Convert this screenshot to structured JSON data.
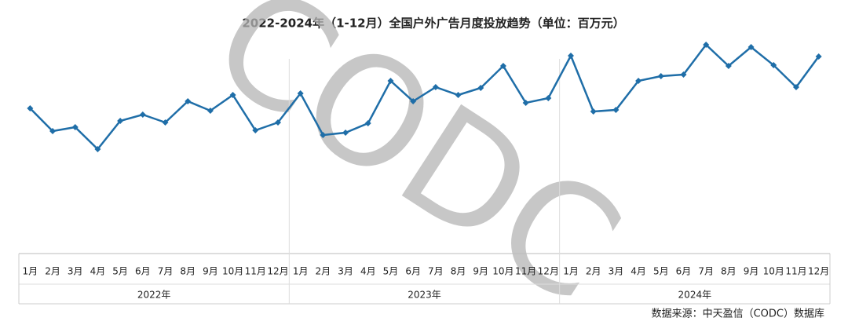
{
  "chart_data": {
    "type": "line",
    "title": "2022-2024年（1-12月）全国户外广告月度投放趋势（单位：百万元）",
    "categories": [
      "1月",
      "2月",
      "3月",
      "4月",
      "5月",
      "6月",
      "7月",
      "8月",
      "9月",
      "10月",
      "11月",
      "12月",
      "1月",
      "2月",
      "3月",
      "4月",
      "5月",
      "6月",
      "7月",
      "8月",
      "9月",
      "10月",
      "11月",
      "12月",
      "1月",
      "2月",
      "3月",
      "4月",
      "5月",
      "6月",
      "7月",
      "8月",
      "9月",
      "10月",
      "11月",
      "12月"
    ],
    "x_groups": [
      "2022年",
      "2023年",
      "2024年"
    ],
    "series": [
      {
        "color": "#1f6ea8",
        "values": [
          192,
          163,
          168,
          140,
          176,
          184,
          174,
          201,
          189,
          209,
          164,
          174,
          211,
          158,
          161,
          173,
          227,
          201,
          219,
          209,
          218,
          246,
          199,
          205,
          259,
          188,
          190,
          227,
          233,
          235,
          273,
          246,
          270,
          247,
          219,
          258
        ]
      }
    ],
    "source": "数据来源：中天盈信（CODC）数据库",
    "watermark": "CODC"
  }
}
